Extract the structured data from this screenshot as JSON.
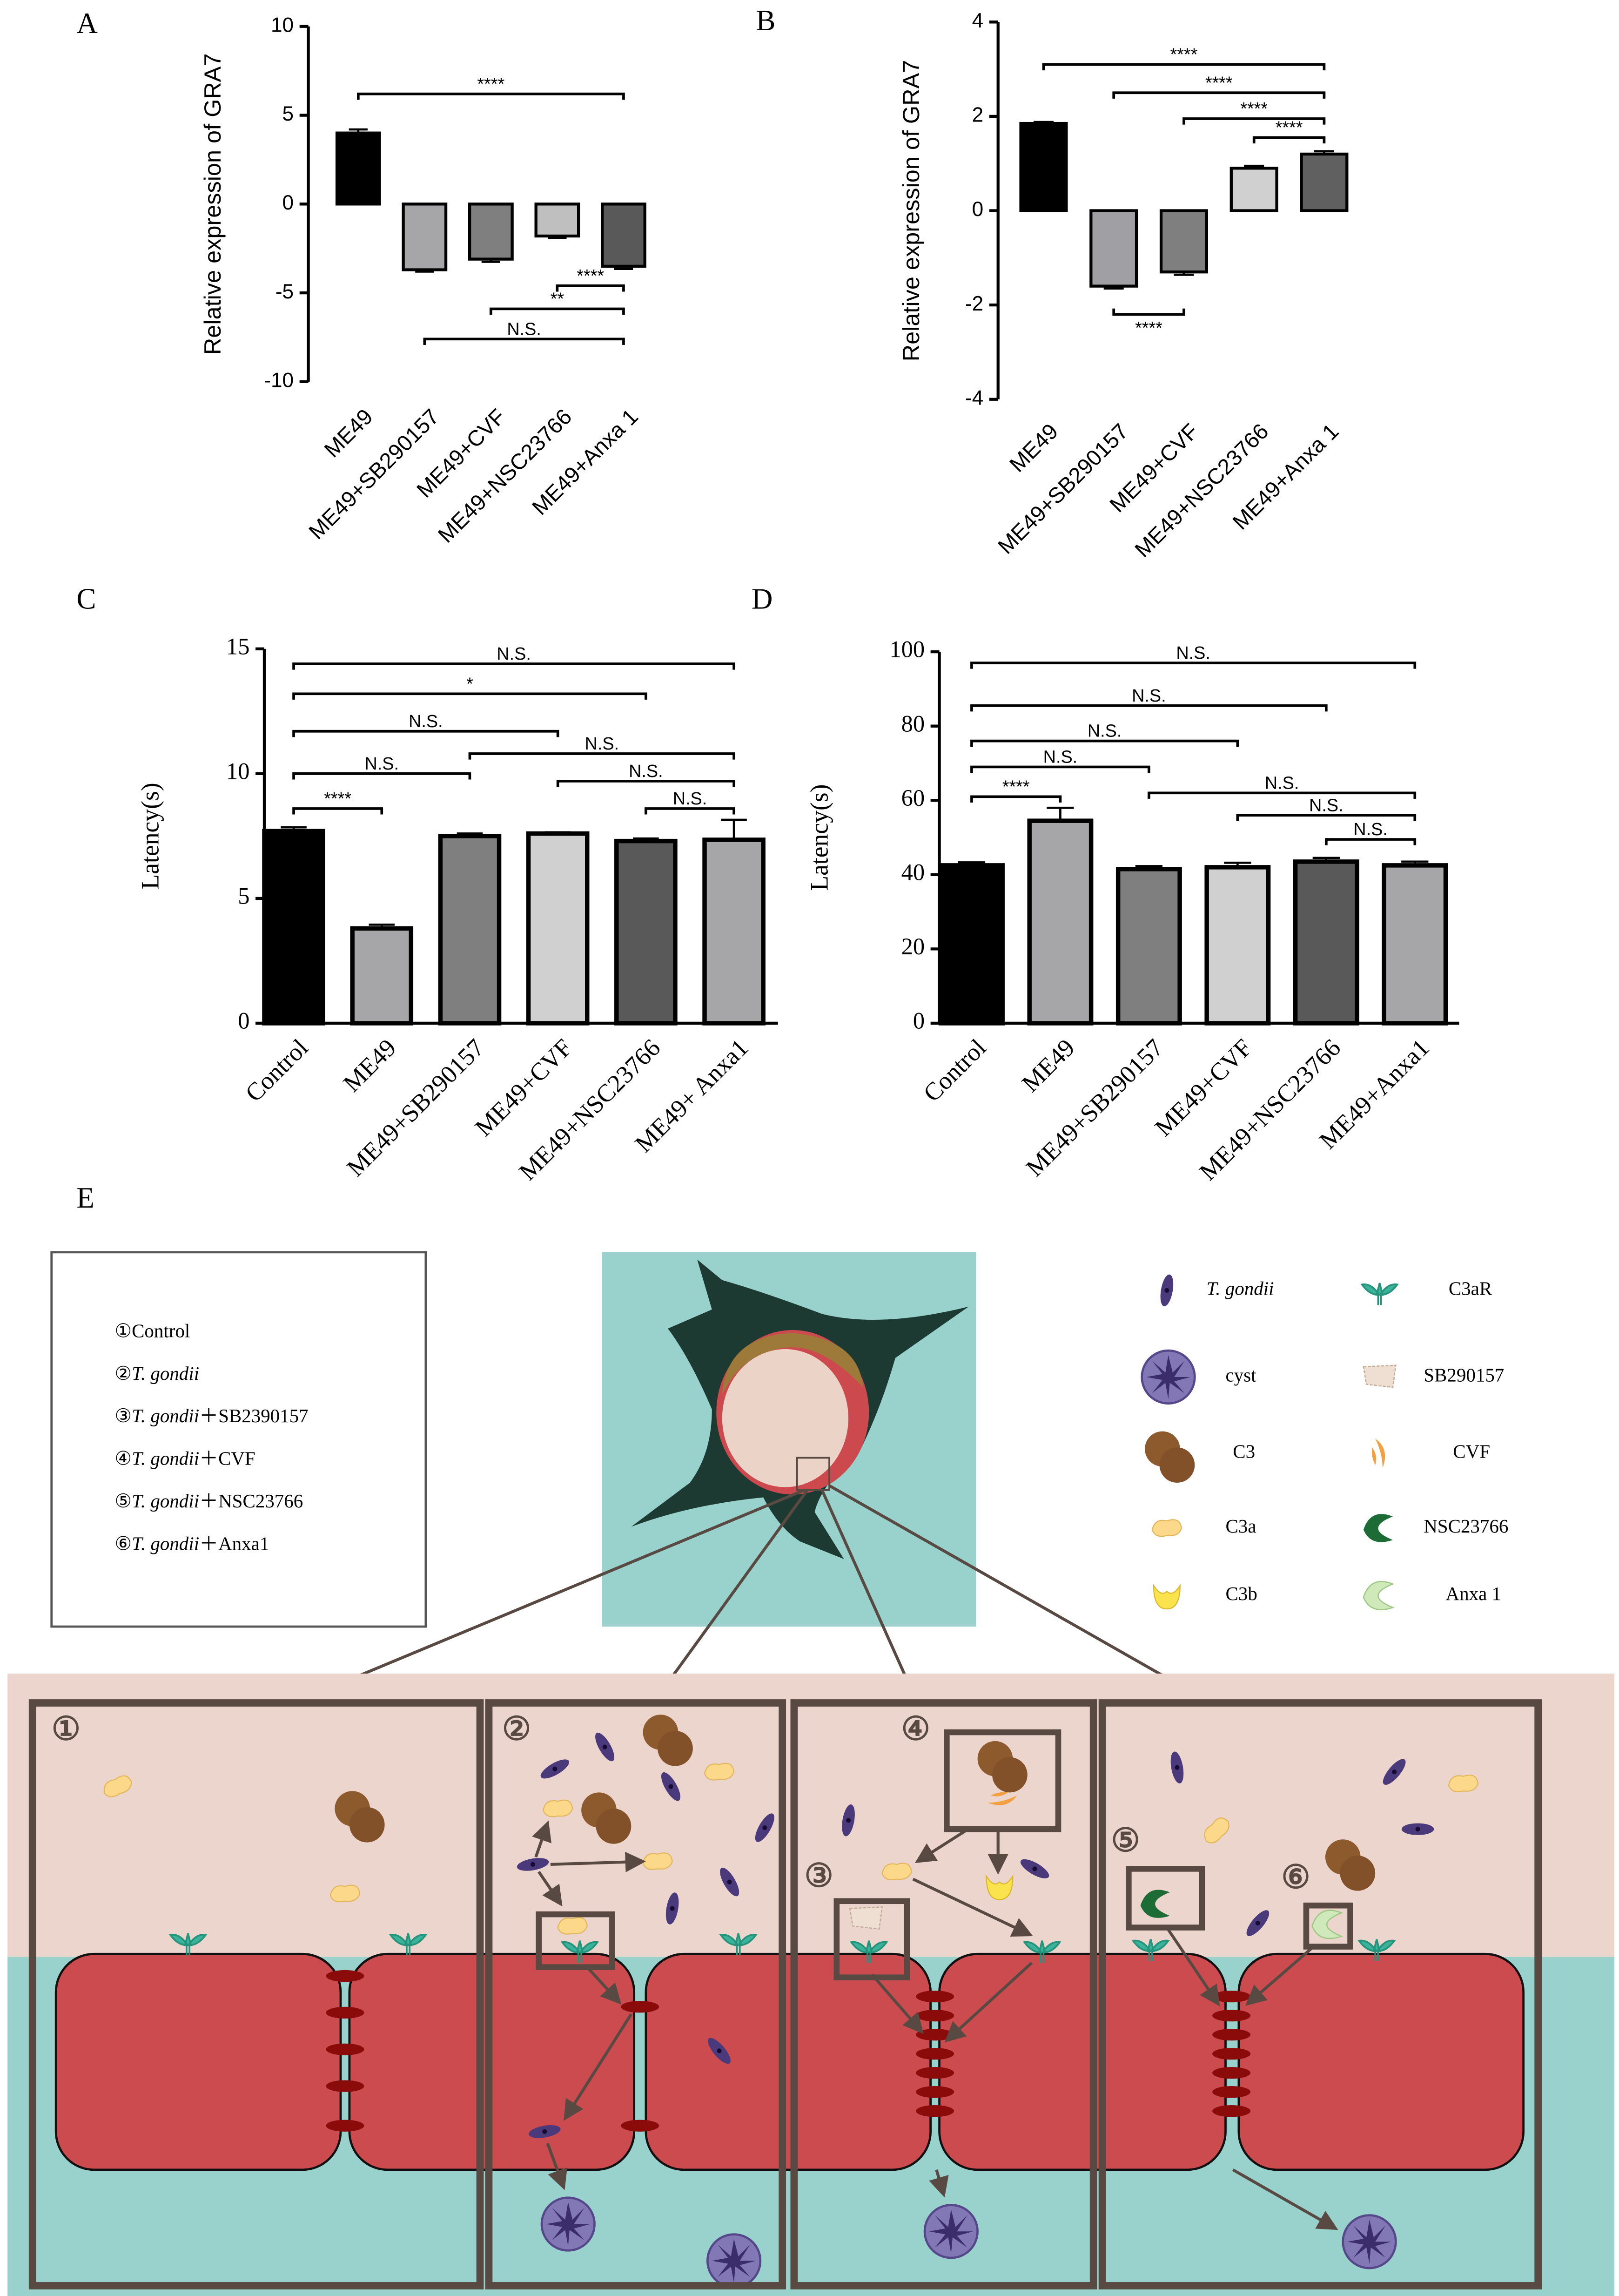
{
  "chart_data": [
    {
      "type": "bar",
      "panel_label": "A",
      "y_label": "Relative expression of GRA7",
      "categories": [
        "ME49",
        "ME49+SB290157",
        "ME49+CVF",
        "ME49+NSC23766",
        "ME49+Anxa 1"
      ],
      "values": [
        4.0,
        -3.7,
        -3.1,
        -1.8,
        -3.5
      ],
      "errors": [
        0.2,
        0.1,
        0.15,
        0.1,
        0.15
      ],
      "colors": [
        "#000000",
        "#a6a6a8",
        "#7f7f7f",
        "#bfbfbf",
        "#595959"
      ],
      "ylim": [
        -10,
        10
      ],
      "yticks": [
        -10,
        -5,
        0,
        5,
        10
      ],
      "annotations": [
        "****",
        "****",
        "**",
        "N.S."
      ]
    },
    {
      "type": "bar",
      "panel_label": "B",
      "y_label": "Relative expression of GRA7",
      "categories": [
        "ME49",
        "ME49+SB290157",
        "ME49+CVF",
        "ME49+NSC23766",
        "ME49+Anxa 1"
      ],
      "values": [
        1.85,
        -1.6,
        -1.3,
        0.9,
        1.2
      ],
      "errors": [
        0.03,
        0.05,
        0.06,
        0.05,
        0.06
      ],
      "colors": [
        "#000000",
        "#a0a0a4",
        "#7f7f7f",
        "#d0d0d0",
        "#606060"
      ],
      "ylim": [
        -4,
        4
      ],
      "yticks": [
        -4,
        -2,
        0,
        2,
        4
      ],
      "annotations": [
        "****",
        "****",
        "****",
        "****",
        "****"
      ]
    },
    {
      "type": "bar",
      "panel_label": "C",
      "y_label": "Latency(s)",
      "categories": [
        "Control",
        "ME49",
        "ME49+SB290157",
        "ME49+CVF",
        "ME49+NSC23766",
        "ME49+ Anxa1"
      ],
      "values": [
        7.7,
        3.8,
        7.5,
        7.6,
        7.3,
        7.35
      ],
      "errors": [
        0.15,
        0.15,
        0.1,
        0.05,
        0.1,
        0.8
      ],
      "colors": [
        "#000000",
        "#a6a6a8",
        "#7f7f7f",
        "#d0d0d0",
        "#595959",
        "#a6a6a8"
      ],
      "ylim": [
        0,
        15
      ],
      "yticks": [
        0,
        5,
        10,
        15
      ],
      "annotations": [
        "N.S.",
        "*",
        "N.S.",
        "N.S.",
        "N.S.",
        "N.S.",
        "****",
        "N.S."
      ]
    },
    {
      "type": "bar",
      "panel_label": "D",
      "y_label": "Latency(s)",
      "categories": [
        "Control",
        "ME49",
        "ME49+SB290157",
        "ME49+CVF",
        "ME49+NSC23766",
        "ME49+Anxa1"
      ],
      "values": [
        42.5,
        54.5,
        41.5,
        42,
        43.5,
        42.5
      ],
      "errors": [
        0.8,
        3.5,
        0.8,
        1.2,
        1,
        1
      ],
      "colors": [
        "#000000",
        "#a6a6a8",
        "#7f7f7f",
        "#d0d0d0",
        "#595959",
        "#a6a6a8"
      ],
      "ylim": [
        0,
        100
      ],
      "yticks": [
        0,
        20,
        40,
        60,
        80,
        100
      ],
      "annotations": [
        "N.S.",
        "N.S.",
        "N.S.",
        "N.S.",
        "****",
        "N.S.",
        "N.S.",
        "N.S."
      ]
    }
  ],
  "diagram": {
    "panel_label": "E",
    "legend_items": [
      {
        "marker": "①",
        "text": "Control"
      },
      {
        "marker": "②",
        "species": "T. gondii"
      },
      {
        "marker": "③",
        "species": "T. gondii",
        "text": "＋SB2390157"
      },
      {
        "marker": "④",
        "species": "T. gondii",
        "text": "＋CVF"
      },
      {
        "marker": "⑤",
        "species": "T. gondii",
        "text": "＋NSC23766"
      },
      {
        "marker": "⑥",
        "species": "T. gondii",
        "text": "＋Anxa1"
      }
    ],
    "key_labels": [
      "T. gondii",
      "cyst",
      "C3",
      "C3a",
      "C3b",
      "C3aR",
      "SB290157",
      "CVF",
      "NSC23766",
      "Anxa 1"
    ],
    "frame_labels": [
      "①",
      "②",
      "③",
      "④",
      "⑤",
      "⑥"
    ]
  }
}
